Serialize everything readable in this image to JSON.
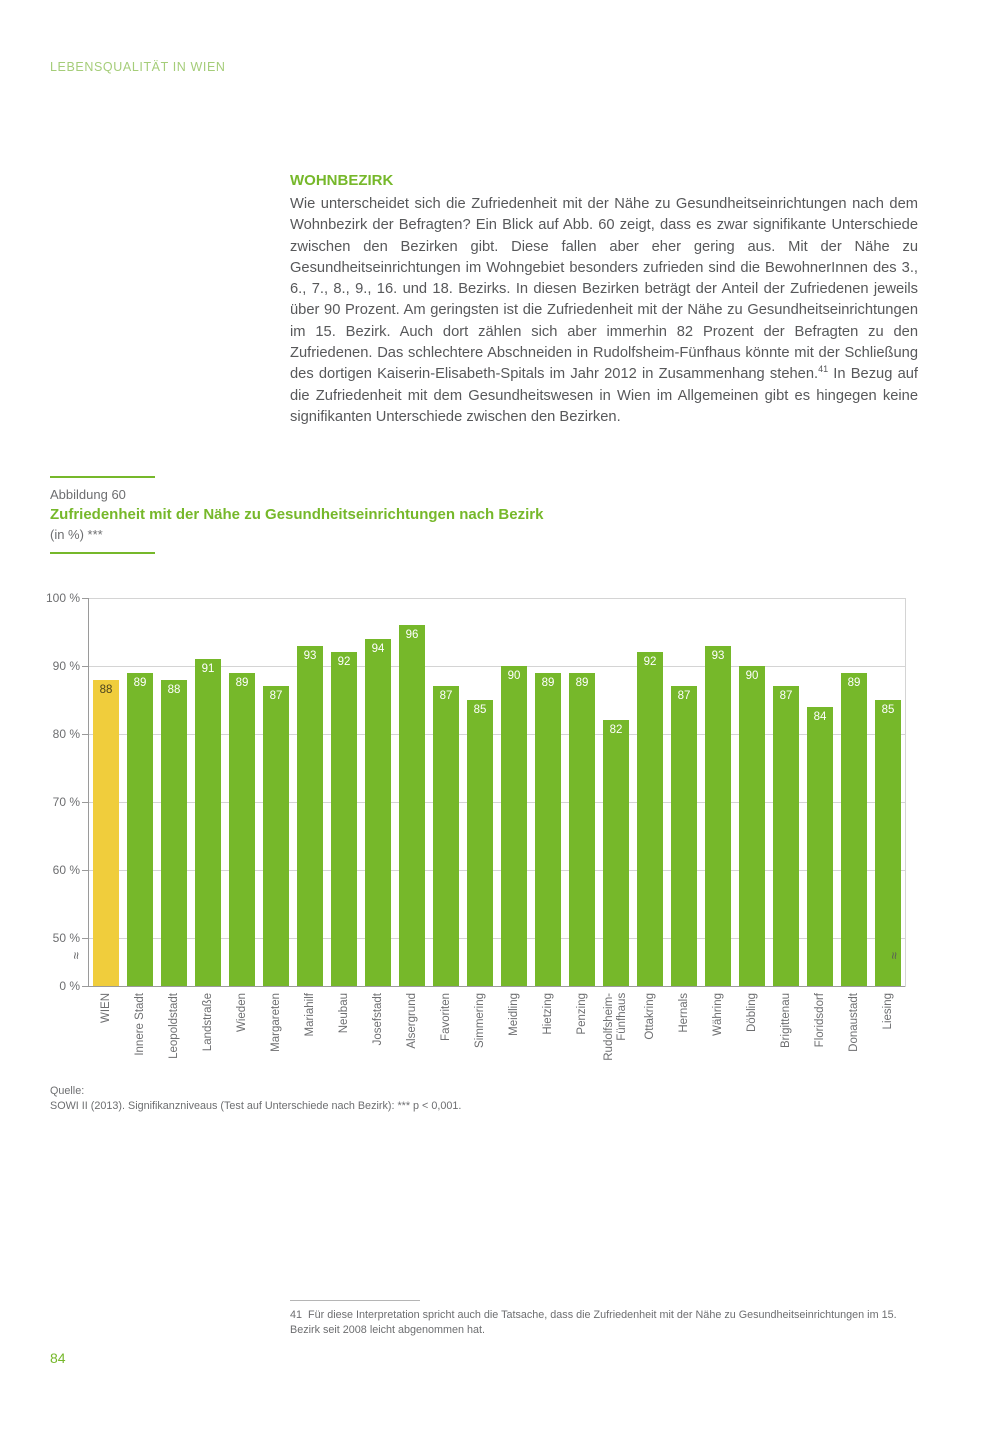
{
  "page": {
    "header": "LEBENSQUALITÄT IN WIEN",
    "page_number": "84"
  },
  "article": {
    "section_heading": "WOHNBEZIRK",
    "paragraph_part1": "Wie unterscheidet sich die Zufriedenheit mit der Nähe zu Gesundheitseinrichtungen nach dem Wohnbezirk der Befragten? Ein Blick auf Abb. 60 zeigt, dass es zwar signifikante Unterschiede zwischen den Bezirken gibt. Diese fallen aber eher gering aus. Mit der Nähe zu Gesundheitseinrichtungen im Wohngebiet besonders zufrieden sind die BewohnerInnen des 3., 6., 7., 8., 9., 16. und 18. Bezirks. In diesen Bezirken beträgt der Anteil der Zufriedenen jeweils über 90 Prozent. Am geringsten ist die Zufriedenheit mit der Nähe zu Gesundheitseinrichtungen im 15. Bezirk. Auch dort zählen sich aber immerhin 82 Prozent der Befragten zu den Zufriedenen. Das schlechtere Abschneiden in Rudolfsheim-Fünfhaus könnte mit der Schließung des dortigen Kaiserin-Elisabeth-Spitals im Jahr 2012 in Zusammenhang stehen.",
    "footnote_ref": "41",
    "paragraph_part2": " In Bezug auf die Zufriedenheit mit dem Gesundheitswesen in Wien im Allgemeinen gibt es hingegen keine signifikanten Unterschiede zwischen den Bezirken."
  },
  "figure": {
    "label": "Abbildung 60",
    "title": "Zufriedenheit mit der Nähe zu Gesundheitseinrichtungen nach Bezirk",
    "subtitle": "(in %) ***"
  },
  "chart_data": {
    "type": "bar",
    "title": "Zufriedenheit mit der Nähe zu Gesundheitseinrichtungen nach Bezirk (in %)",
    "xlabel": "",
    "ylabel": "%",
    "categories": [
      "WIEN",
      "Innere Stadt",
      "Leopoldstadt",
      "Landstraße",
      "Wieden",
      "Margareten",
      "Mariahilf",
      "Neubau",
      "Josefstadt",
      "Alsergrund",
      "Favoriten",
      "Simmering",
      "Meidling",
      "Hietzing",
      "Penzing",
      "Rudolfsheim-\nFünfhaus",
      "Ottakring",
      "Hernals",
      "Währing",
      "Döbling",
      "Brigittenau",
      "Floridsdorf",
      "Donaustadt",
      "Liesing"
    ],
    "values": [
      88,
      89,
      88,
      91,
      89,
      87,
      93,
      92,
      94,
      96,
      87,
      85,
      90,
      89,
      89,
      82,
      92,
      87,
      93,
      90,
      87,
      84,
      89,
      85
    ],
    "highlight_index": 0,
    "colors": {
      "bar": "#76b82a",
      "highlight": "#f0cd3c"
    },
    "y_tick_labels": [
      "100 %",
      "90 %",
      "80 %",
      "70 %",
      "60 %",
      "50 %",
      "0 %"
    ],
    "ylim": [
      0,
      100
    ],
    "axis_break": "≈",
    "grid": true,
    "legend": "none"
  },
  "source": {
    "label": "Quelle:",
    "text": "SOWI II (2013). Signifikanzniveaus (Test auf Unterschiede nach Bezirk): *** p < 0,001."
  },
  "footnote": {
    "number": "41",
    "text": "Für diese Interpretation spricht auch die Tatsache, dass die Zufriedenheit mit der Nähe zu Gesundheitseinrichtungen im 15. Bezirk seit 2008 leicht abgenommen hat."
  }
}
